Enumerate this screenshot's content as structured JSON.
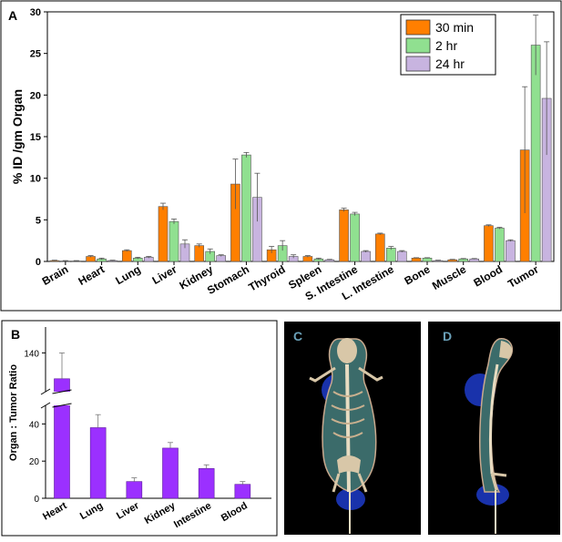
{
  "chart_data": [
    {
      "panel": "A",
      "type": "bar",
      "ylabel": "% ID /gm Organ",
      "ylim": [
        0,
        30
      ],
      "yticks": [
        0,
        5,
        10,
        15,
        20,
        25,
        30
      ],
      "categories": [
        "Brain",
        "Heart",
        "Lung",
        "Liver",
        "Kidney",
        "Stomach",
        "Thyroid",
        "Spleen",
        "S. Intestine",
        "L. Intestine",
        "Bone",
        "Muscle",
        "Blood",
        "Tumor"
      ],
      "series": [
        {
          "name": "30 min",
          "color": "#ff7f00",
          "values": [
            0.1,
            0.6,
            1.3,
            6.6,
            1.9,
            9.3,
            1.4,
            0.6,
            6.2,
            3.3,
            0.4,
            0.2,
            4.3,
            13.4
          ],
          "errors": [
            0.05,
            0.1,
            0.1,
            0.4,
            0.2,
            3.0,
            0.4,
            0.1,
            0.2,
            0.1,
            0.05,
            0.05,
            0.1,
            7.6
          ]
        },
        {
          "name": "2 hr",
          "color": "#90e090",
          "values": [
            0.05,
            0.3,
            0.4,
            4.8,
            1.2,
            12.8,
            1.9,
            0.3,
            5.7,
            1.6,
            0.4,
            0.3,
            4.0,
            26.0
          ],
          "errors": [
            0.05,
            0.1,
            0.1,
            0.3,
            0.3,
            0.3,
            0.6,
            0.1,
            0.2,
            0.2,
            0.05,
            0.05,
            0.1,
            3.6
          ]
        },
        {
          "name": "24 hr",
          "color": "#c8b4e0",
          "values": [
            0.05,
            0.1,
            0.5,
            2.1,
            0.7,
            7.7,
            0.6,
            0.2,
            1.2,
            1.2,
            0.1,
            0.3,
            2.5,
            19.6
          ],
          "errors": [
            0.05,
            0.05,
            0.1,
            0.5,
            0.1,
            2.9,
            0.2,
            0.05,
            0.1,
            0.1,
            0.05,
            0.05,
            0.1,
            6.8
          ]
        }
      ]
    },
    {
      "panel": "B",
      "type": "bar",
      "ylabel": "Organ : Tumor Ratio",
      "categories": [
        "Heart",
        "Lung",
        "Liver",
        "Kidney",
        "Intestine",
        "Blood"
      ],
      "values": [
        130,
        38,
        9,
        27,
        16,
        7.5
      ],
      "errors": [
        10,
        7,
        2,
        3,
        2,
        1.5
      ],
      "color": "#9b30ff",
      "axis_break": [
        50,
        125
      ],
      "yticks_low": [
        0,
        20,
        40
      ],
      "yticks_high": [
        140
      ]
    }
  ],
  "panels": {
    "a_label": "A",
    "b_label": "B",
    "c_label": "C",
    "d_label": "D"
  }
}
